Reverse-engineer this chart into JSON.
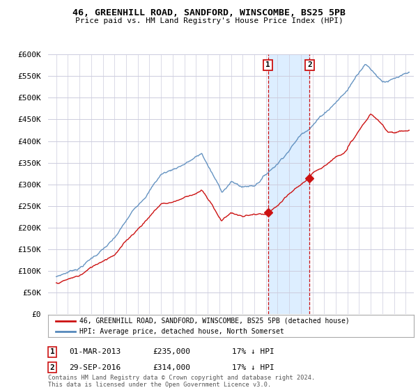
{
  "title": "46, GREENHILL ROAD, SANDFORD, WINSCOMBE, BS25 5PB",
  "subtitle": "Price paid vs. HM Land Registry's House Price Index (HPI)",
  "legend_line1": "46, GREENHILL ROAD, SANDFORD, WINSCOMBE, BS25 5PB (detached house)",
  "legend_line2": "HPI: Average price, detached house, North Somerset",
  "annotation1_date": "01-MAR-2013",
  "annotation1_price": "£235,000",
  "annotation1_hpi": "17% ↓ HPI",
  "annotation2_date": "29-SEP-2016",
  "annotation2_price": "£314,000",
  "annotation2_hpi": "17% ↓ HPI",
  "footer": "Contains HM Land Registry data © Crown copyright and database right 2024.\nThis data is licensed under the Open Government Licence v3.0.",
  "hpi_color": "#5588bb",
  "price_color": "#cc1111",
  "dashed_color": "#cc1111",
  "annotation_box_color": "#cc1111",
  "background_color": "#ffffff",
  "plot_bg_color": "#ffffff",
  "grid_color": "#ccccdd",
  "shade_color": "#ddeeff",
  "ylim": [
    0,
    600000
  ],
  "yticks": [
    0,
    50000,
    100000,
    150000,
    200000,
    250000,
    300000,
    350000,
    400000,
    450000,
    500000,
    550000,
    600000
  ],
  "shade_x_start": 2013.17,
  "shade_x_end": 2016.75,
  "marker1_x": 2013.17,
  "marker1_y": 235000,
  "marker2_x": 2016.75,
  "marker2_y": 314000,
  "xlim_left": 1994.3,
  "xlim_right": 2025.7
}
